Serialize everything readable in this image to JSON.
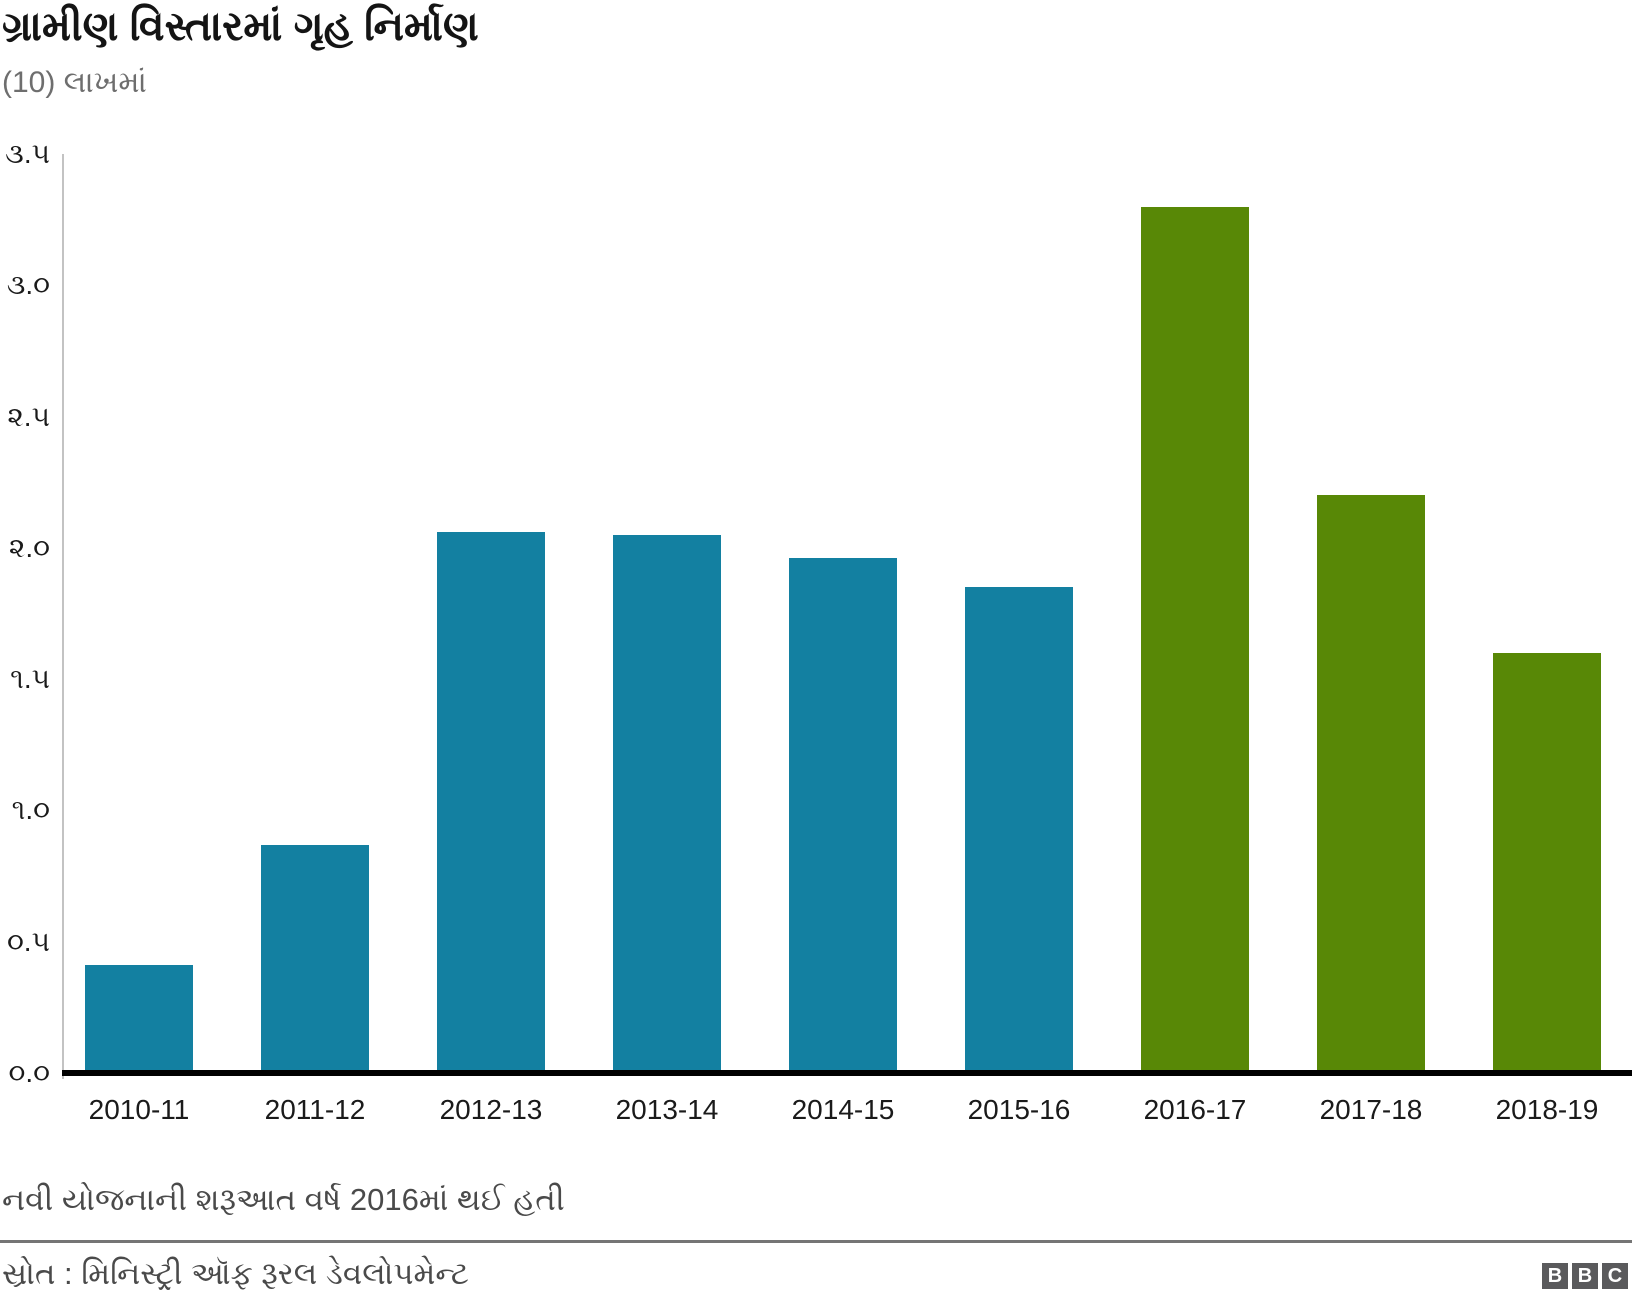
{
  "header": {
    "title": "ગ્રામીણ વિસ્તારમાં ગૃહ નિર્માણ",
    "subtitle": "(10) લાખમાં"
  },
  "chart_data": {
    "type": "bar",
    "title": "ગ્રામીણ વિસ્તારમાં ગૃહ નિર્માણ",
    "subtitle": "(10) લાખમાં",
    "categories": [
      "2010-11",
      "2011-12",
      "2012-13",
      "2013-14",
      "2014-15",
      "2015-16",
      "2016-17",
      "2017-18",
      "2018-19"
    ],
    "values": [
      0.41,
      0.87,
      2.06,
      2.05,
      1.96,
      1.85,
      3.3,
      2.2,
      1.6
    ],
    "bar_colors": [
      "#1380a1",
      "#1380a1",
      "#1380a1",
      "#1380a1",
      "#1380a1",
      "#1380a1",
      "#588806",
      "#588806",
      "#588806"
    ],
    "series_colors": {
      "old_scheme_blue": "#1380a1",
      "new_scheme_green": "#588806"
    },
    "xlabel": "",
    "ylabel": "",
    "ylim": [
      0,
      3.5
    ],
    "yticks": {
      "values": [
        0,
        0.5,
        1,
        1.5,
        2,
        2.5,
        3,
        3.5
      ],
      "labels": [
        "૦.૦",
        "૦.૫",
        "૧.૦",
        "૧.૫",
        "૨.૦",
        "૨.૫",
        "૩.૦",
        "૩.૫"
      ]
    },
    "grid": false,
    "legend": false
  },
  "footnote": "નવી યોજનાની શરૂઆત વર્ષ 2016માં થઈ હતી",
  "source": "સ્રોત : મિનિસ્ટ્રી ઑફ રૂરલ ડેવલોપમેન્ટ",
  "logo": {
    "letters": [
      "B",
      "B",
      "C"
    ]
  }
}
